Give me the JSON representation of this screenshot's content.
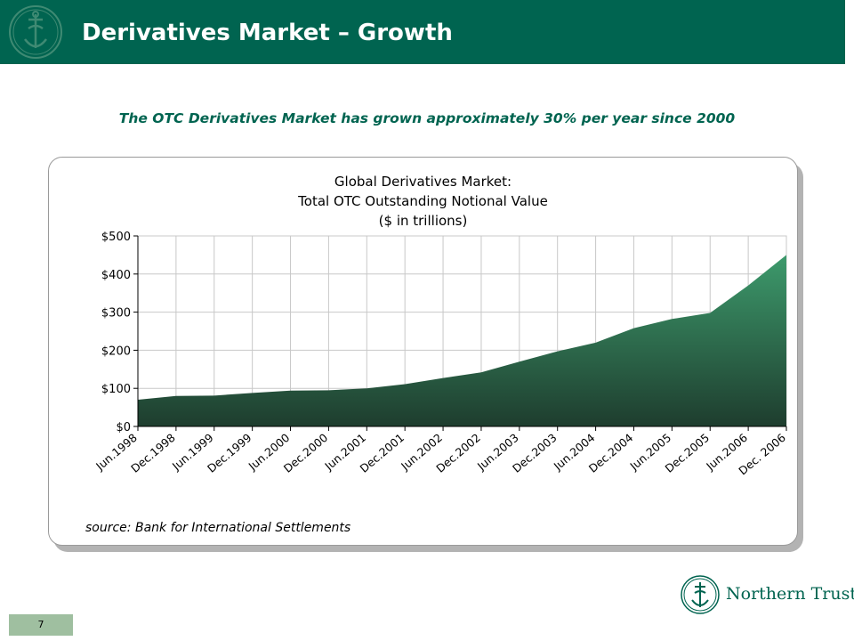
{
  "header": {
    "title": "Derivatives Market – Growth"
  },
  "subtitle": "The OTC Derivatives Market has grown approximately 30% per year since 2000",
  "chart_data": {
    "type": "area",
    "title_lines": [
      "Global Derivatives Market:",
      "Total OTC Outstanding Notional Value",
      "($ in trillions)"
    ],
    "categories": [
      "Jun.1998",
      "Dec.1998",
      "Jun.1999",
      "Dec.1999",
      "Jun.2000",
      "Dec.2000",
      "Jun.2001",
      "Dec.2001",
      "Jun.2002",
      "Dec.2002",
      "Jun.2003",
      "Dec.2003",
      "Jun.2004",
      "Dec.2004",
      "Jun.2005",
      "Dec.2005",
      "Jun.2006",
      "Dec. 2006"
    ],
    "values": [
      70,
      80,
      81,
      88,
      94,
      95,
      100,
      111,
      127,
      142,
      170,
      197,
      220,
      258,
      282,
      298,
      370,
      450
    ],
    "ylim": [
      0,
      500
    ],
    "yticks": [
      0,
      100,
      200,
      300,
      400,
      500
    ],
    "ytick_labels": [
      "$0",
      "$100",
      "$200",
      "$300",
      "$400",
      "$500"
    ],
    "grid": true,
    "colors": {
      "area_top": "#3d9a6c",
      "area_bottom": "#1e3d2e",
      "grid": "#c8c8c8"
    }
  },
  "source": "source: Bank for International Settlements",
  "footer": {
    "page_number": "7",
    "brand": "Northern Trust"
  }
}
